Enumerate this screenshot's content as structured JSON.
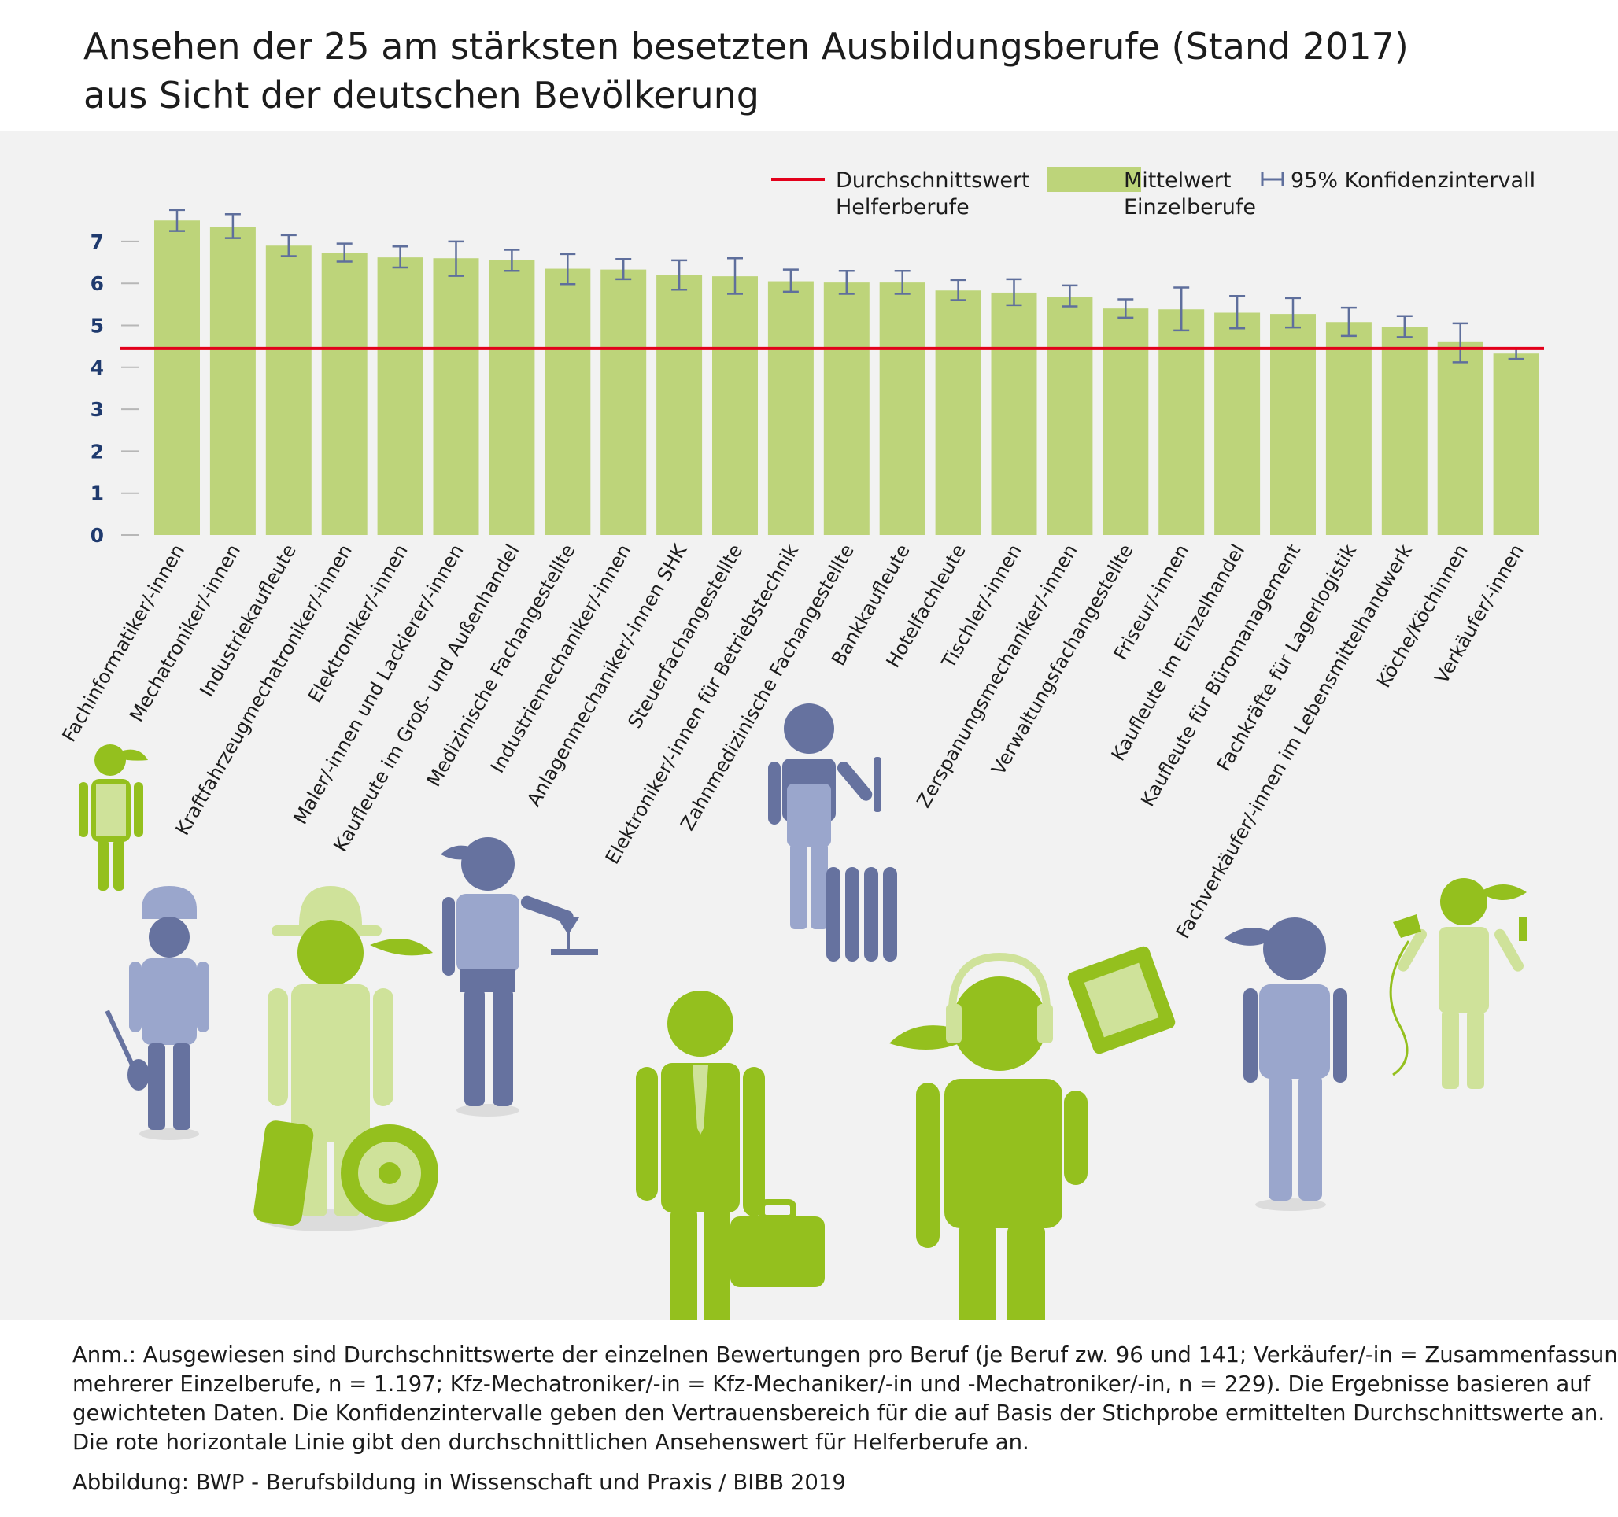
{
  "title_line1": "Ansehen der 25 am stärksten besetzten Ausbildungsberufe (Stand 2017)",
  "title_line2": "aus Sicht der deutschen Bevölkerung",
  "legend": {
    "red_line_1": "Durchschnittswert",
    "red_line_2": "Helferberufe",
    "bar_1": "Mittelwert",
    "bar_2": "Einzelberufe",
    "ci": "95% Konfidenzintervall"
  },
  "colors": {
    "bar": "#bdd47a",
    "reference_line": "#e3001b",
    "error_bar": "#5f6f9c",
    "axis_text": "#1f3a6e",
    "icon_green": "#94c01e",
    "icon_light_green": "#cfe29a",
    "icon_blue": "#66729f",
    "icon_light_blue": "#9aa6cc"
  },
  "chart_data": {
    "type": "bar",
    "ylim": [
      0,
      7.5
    ],
    "yticks": [
      "0",
      "1",
      "2",
      "3",
      "4",
      "5",
      "6",
      "7"
    ],
    "grid": false,
    "legend_position": "top-right",
    "reference_line": {
      "value": 4.45
    },
    "categories": [
      "Fachinformatiker/-innen",
      "Mechatroniker/-innen",
      "Industriekaufleute",
      "Kraftfahrzeugmechatroniker/-innen",
      "Elektroniker/-innen",
      "Maler/-innen und Lackierer/-innen",
      "Kaufleute im Groß- und Außenhandel",
      "Medizinische Fachangestellte",
      "Industriemechaniker/-innen",
      "Anlagenmechaniker/-innen SHK",
      "Steuerfachangestellte",
      "Elektroniker/-innen für Betriebstechnik",
      "Zahnmedizinische Fachangestellte",
      "Bankkaufleute",
      "Hotelfachleute",
      "Tischler/-innen",
      "Zerspanungsmechaniker/-innen",
      "Verwaltungsfachangestellte",
      "Friseur/-innen",
      "Kaufleute im Einzelhandel",
      "Kaufleute für Büromanagement",
      "Fachkräfte für Lagerlogistik",
      "Fachverkäufer/-innen  im Lebensmittelhandwerk",
      "Köche/Köchinnen",
      "Verkäufer/-innen"
    ],
    "series": [
      {
        "values": [
          7.5,
          7.35,
          6.9,
          6.72,
          6.62,
          6.6,
          6.55,
          6.35,
          6.33,
          6.2,
          6.17,
          6.05,
          6.02,
          6.02,
          5.83,
          5.78,
          5.68,
          5.4,
          5.38,
          5.3,
          5.27,
          5.08,
          4.97,
          4.6,
          4.33
        ],
        "ci_low": [
          7.25,
          7.08,
          6.65,
          6.52,
          6.38,
          6.18,
          6.3,
          5.98,
          6.1,
          5.85,
          5.75,
          5.8,
          5.75,
          5.75,
          5.6,
          5.48,
          5.45,
          5.18,
          4.88,
          4.93,
          4.95,
          4.75,
          4.72,
          4.12,
          4.2
        ],
        "ci_high": [
          7.75,
          7.65,
          7.15,
          6.95,
          6.88,
          7.0,
          6.8,
          6.7,
          6.58,
          6.55,
          6.6,
          6.33,
          6.3,
          6.3,
          6.08,
          6.1,
          5.95,
          5.62,
          5.9,
          5.7,
          5.65,
          5.42,
          5.22,
          5.05,
          4.45
        ]
      }
    ]
  },
  "note_lines": [
    "Anm.: Ausgewiesen sind Durchschnittswerte der einzelnen Bewertungen pro Beruf (je Beruf zw. 96 und 141; Verkäufer/-in = Zusammenfassung",
    "mehrerer Einzelberufe, n = 1.197; Kfz-Mechatroniker/-in = Kfz-Mechaniker/-in und -Mechatroniker/-in, n = 229). Die Ergebnisse basieren auf",
    "gewichteten Daten. Die Konfidenzintervalle geben den Vertrauensbereich für die auf Basis der Stichprobe ermittelten Durchschnittswerte an.",
    "Die rote horizontale Linie gibt den durchschnittlichen Ansehenswert für Helferberufe an."
  ],
  "source": "Abbildung: BWP - Berufsbildung in Wissenschaft und Praxis / BIBB 2019"
}
